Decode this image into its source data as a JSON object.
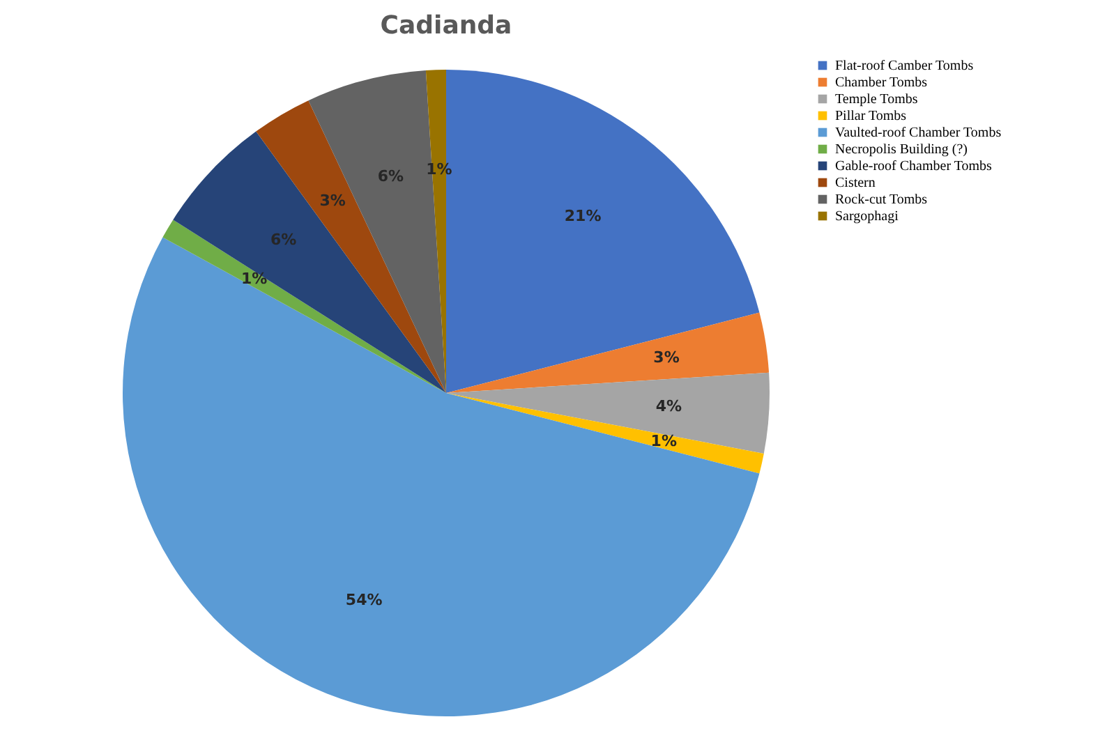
{
  "chart_data": {
    "type": "pie",
    "title": "Cadianda",
    "categories": [
      "Flat-roof Camber Tombs",
      "Chamber Tombs",
      "Temple Tombs",
      "Pillar Tombs",
      "Vaulted-roof Chamber Tombs",
      "Necropolis Building (?)",
      "Gable-roof Chamber Tombs",
      "Cistern",
      "Rock-cut Tombs",
      "Sargophagi"
    ],
    "values": [
      21,
      3,
      4,
      1,
      54,
      1,
      6,
      3,
      6,
      1
    ],
    "value_labels": [
      "21%",
      "3%",
      "4%",
      "1%",
      "54%",
      "1%",
      "6%",
      "3%",
      "6%",
      "1%"
    ],
    "colors": [
      "#4472c4",
      "#ed7d31",
      "#a5a5a5",
      "#ffc000",
      "#5b9bd5",
      "#70ad47",
      "#264478",
      "#9e480e",
      "#636363",
      "#997300"
    ],
    "legend": "right"
  }
}
